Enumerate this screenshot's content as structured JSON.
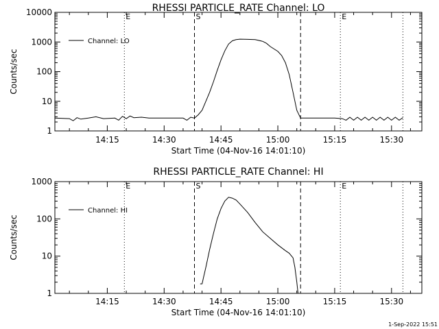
{
  "footer": {
    "timestamp": "1-Sep-2022 15:51"
  },
  "time_ticks": [
    "14:15",
    "14:30",
    "14:45",
    "15:00",
    "15:15",
    "15:30"
  ],
  "chart_data": [
    {
      "type": "line",
      "title": "RHESSI PARTICLE_RATE Channel: LO",
      "xlabel": "Start Time (04-Nov-16 14:01:10)",
      "ylabel": "Counts/sec",
      "yscale": "log",
      "ylim": [
        1,
        10000
      ],
      "y_ticks": [
        "1",
        "10",
        "100",
        "1000",
        "10000"
      ],
      "xlim": [
        "14:01:10",
        "15:38:00"
      ],
      "legend": {
        "label": "Channel: LO",
        "position": "top-left"
      },
      "markers": [
        {
          "time": "14:19:30",
          "style": "dotted",
          "label": "E"
        },
        {
          "time": "14:38:00",
          "style": "dashed",
          "label": "S"
        },
        {
          "time": "15:06:00",
          "style": "dashed",
          "label": ""
        },
        {
          "time": "15:16:30",
          "style": "dotted",
          "label": "E"
        },
        {
          "time": "15:33:00",
          "style": "dotted",
          "label": ""
        }
      ],
      "series": [
        {
          "name": "Channel: LO",
          "points": [
            [
              "14:01:10",
              2.7
            ],
            [
              "14:05:00",
              2.6
            ],
            [
              "14:06:00",
              2.2
            ],
            [
              "14:07:00",
              2.8
            ],
            [
              "14:08:00",
              2.5
            ],
            [
              "14:10:00",
              2.7
            ],
            [
              "14:12:00",
              3.0
            ],
            [
              "14:14:00",
              2.6
            ],
            [
              "14:17:00",
              2.7
            ],
            [
              "14:18:00",
              2.3
            ],
            [
              "14:19:00",
              3.1
            ],
            [
              "14:20:00",
              2.6
            ],
            [
              "14:21:00",
              3.2
            ],
            [
              "14:22:00",
              2.8
            ],
            [
              "14:24:00",
              2.9
            ],
            [
              "14:26:00",
              2.7
            ],
            [
              "14:30:00",
              2.7
            ],
            [
              "14:35:00",
              2.7
            ],
            [
              "14:36:00",
              2.3
            ],
            [
              "14:37:00",
              2.9
            ],
            [
              "14:38:00",
              2.7
            ],
            [
              "14:39:00",
              3.5
            ],
            [
              "14:40:00",
              5.0
            ],
            [
              "14:41:00",
              10.0
            ],
            [
              "14:42:00",
              20.0
            ],
            [
              "14:43:00",
              45.0
            ],
            [
              "14:44:00",
              110.0
            ],
            [
              "14:45:00",
              250.0
            ],
            [
              "14:46:00",
              500.0
            ],
            [
              "14:47:00",
              850.0
            ],
            [
              "14:48:00",
              1100.0
            ],
            [
              "14:49:00",
              1200.0
            ],
            [
              "14:50:00",
              1250.0
            ],
            [
              "14:52:00",
              1230.0
            ],
            [
              "14:54:00",
              1200.0
            ],
            [
              "14:56:00",
              1050.0
            ],
            [
              "14:57:00",
              900.0
            ],
            [
              "14:58:00",
              700.0
            ],
            [
              "15:00:00",
              480.0
            ],
            [
              "15:01:00",
              350.0
            ],
            [
              "15:02:00",
              200.0
            ],
            [
              "15:03:00",
              80.0
            ],
            [
              "15:04:00",
              20.0
            ],
            [
              "15:05:00",
              5.0
            ],
            [
              "15:06:00",
              2.7
            ],
            [
              "15:08:00",
              2.7
            ],
            [
              "15:12:00",
              2.7
            ],
            [
              "15:15:00",
              2.7
            ],
            [
              "15:17:00",
              2.6
            ],
            [
              "15:18:00",
              2.3
            ],
            [
              "15:19:00",
              2.9
            ],
            [
              "15:20:00",
              2.3
            ],
            [
              "15:21:00",
              2.9
            ],
            [
              "15:22:00",
              2.3
            ],
            [
              "15:23:00",
              2.9
            ],
            [
              "15:24:00",
              2.3
            ],
            [
              "15:25:00",
              2.9
            ],
            [
              "15:26:00",
              2.3
            ],
            [
              "15:27:00",
              2.9
            ],
            [
              "15:28:00",
              2.3
            ],
            [
              "15:29:00",
              2.9
            ],
            [
              "15:30:00",
              2.3
            ],
            [
              "15:31:00",
              2.9
            ],
            [
              "15:32:00",
              2.3
            ],
            [
              "15:33:00",
              2.8
            ]
          ]
        }
      ]
    },
    {
      "type": "line",
      "title": "RHESSI PARTICLE_RATE Channel: HI",
      "xlabel": "Start Time (04-Nov-16 14:01:10)",
      "ylabel": "Counts/sec",
      "yscale": "log",
      "ylim": [
        1,
        1000
      ],
      "y_ticks": [
        "1",
        "10",
        "100",
        "1000"
      ],
      "xlim": [
        "14:01:10",
        "15:38:00"
      ],
      "legend": {
        "label": "Channel: HI",
        "position": "top-left"
      },
      "markers": [
        {
          "time": "14:19:30",
          "style": "dotted",
          "label": "E"
        },
        {
          "time": "14:38:00",
          "style": "dashed",
          "label": "S"
        },
        {
          "time": "15:06:00",
          "style": "dashed",
          "label": ""
        },
        {
          "time": "15:16:30",
          "style": "dotted",
          "label": "E"
        },
        {
          "time": "15:33:00",
          "style": "dotted",
          "label": ""
        }
      ],
      "series": [
        {
          "name": "Channel: HI",
          "points": [
            [
              "14:39:30",
              1.8
            ],
            [
              "14:40:00",
              1.8
            ],
            [
              "14:40:30",
              3.0
            ],
            [
              "14:41:00",
              5.0
            ],
            [
              "14:42:00",
              15.0
            ],
            [
              "14:43:00",
              40.0
            ],
            [
              "14:44:00",
              100.0
            ],
            [
              "14:45:00",
              190.0
            ],
            [
              "14:46:00",
              300.0
            ],
            [
              "14:47:00",
              380.0
            ],
            [
              "14:48:00",
              360.0
            ],
            [
              "14:49:00",
              320.0
            ],
            [
              "14:50:00",
              250.0
            ],
            [
              "14:52:00",
              150.0
            ],
            [
              "14:54:00",
              80.0
            ],
            [
              "14:56:00",
              45.0
            ],
            [
              "14:58:00",
              30.0
            ],
            [
              "15:00:00",
              20.0
            ],
            [
              "15:02:00",
              14.0
            ],
            [
              "15:03:00",
              12.0
            ],
            [
              "15:04:00",
              9.0
            ],
            [
              "15:04:30",
              5.0
            ],
            [
              "15:05:00",
              2.0
            ],
            [
              "15:05:20",
              1.0
            ]
          ]
        }
      ]
    }
  ]
}
